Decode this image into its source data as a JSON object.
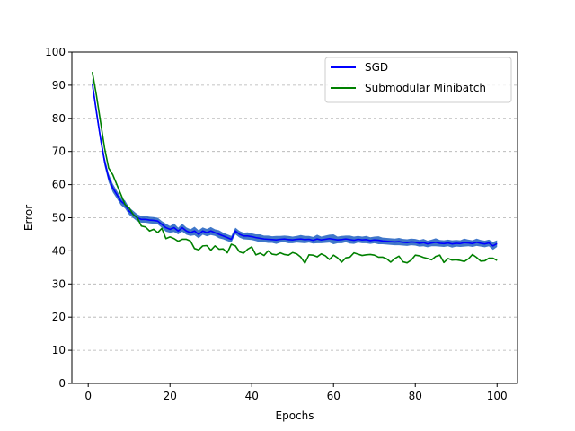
{
  "chart_data": {
    "type": "line",
    "title": "",
    "xlabel": "Epochs",
    "ylabel": "Error",
    "xlim": [
      -4,
      105
    ],
    "ylim": [
      0,
      100
    ],
    "xticks": [
      0,
      20,
      40,
      60,
      80,
      100
    ],
    "yticks": [
      0,
      10,
      20,
      30,
      40,
      50,
      60,
      70,
      80,
      90,
      100
    ],
    "grid": "horizontal-dashed",
    "legend_position": "top-right",
    "x": [
      1,
      2,
      3,
      4,
      5,
      6,
      7,
      8,
      9,
      10,
      11,
      12,
      13,
      14,
      15,
      16,
      17,
      18,
      19,
      20,
      21,
      22,
      23,
      24,
      25,
      26,
      27,
      28,
      29,
      30,
      31,
      32,
      33,
      34,
      35,
      36,
      37,
      38,
      39,
      40,
      41,
      42,
      43,
      44,
      45,
      46,
      47,
      48,
      49,
      50,
      51,
      52,
      53,
      54,
      55,
      56,
      57,
      58,
      59,
      60,
      61,
      62,
      63,
      64,
      65,
      66,
      67,
      68,
      69,
      70,
      71,
      72,
      73,
      74,
      75,
      76,
      77,
      78,
      79,
      80,
      81,
      82,
      83,
      84,
      85,
      86,
      87,
      88,
      89,
      90,
      91,
      92,
      93,
      94,
      95,
      96,
      97,
      98,
      99,
      100
    ],
    "series": [
      {
        "name": "SGD",
        "color": "#0000ff",
        "band_color": "#1f5fbf",
        "values": [
          90.5,
          82,
          74,
          67,
          62,
          59,
          57,
          55,
          54,
          52,
          51,
          50,
          49.5,
          49.5,
          49.3,
          49.2,
          49,
          48,
          47,
          46.5,
          47,
          46,
          47,
          46,
          45.5,
          46,
          45,
          46,
          45.5,
          46,
          45.5,
          45,
          44.5,
          44,
          43.5,
          46,
          45,
          44.5,
          44.5,
          44.3,
          44,
          43.8,
          43.6,
          43.5,
          43.4,
          43.3,
          43.5,
          43.6,
          43.4,
          43.3,
          43.5,
          43.6,
          43.4,
          43.5,
          43.2,
          43.6,
          43.3,
          43.5,
          43.7,
          43.5,
          43.3,
          43.4,
          43.6,
          43.4,
          43.2,
          43.5,
          43.3,
          43.4,
          43.1,
          43.3,
          43.2,
          43,
          42.9,
          42.8,
          42.7,
          42.8,
          42.6,
          42.5,
          42.7,
          42.6,
          42.3,
          42.5,
          42.1,
          42.4,
          42.6,
          42.3,
          42.2,
          42.4,
          42.1,
          42.3,
          42.2,
          42.5,
          42.4,
          42.2,
          42.6,
          42.3,
          42.1,
          42.4,
          41.5,
          42.2
        ],
        "spread": [
          1.5,
          1.5,
          1.4,
          1.4,
          1.3,
          1.3,
          1.2,
          1.2,
          1.2,
          1.1,
          1.1,
          1.1,
          1,
          1,
          1,
          1,
          1,
          1,
          1.2,
          1,
          1.3,
          1,
          1.2,
          1.1,
          1,
          1.3,
          1.2,
          1.1,
          1.1,
          1.2,
          1,
          1.2,
          1,
          1,
          1,
          1,
          1,
          1,
          1.1,
          1,
          1,
          1.2,
          1,
          1.1,
          1,
          1.2,
          1,
          1,
          1.1,
          1,
          1,
          1.2,
          1.1,
          1,
          1,
          1.3,
          1,
          1.1,
          1.2,
          1.5,
          1,
          1.1,
          1,
          1.2,
          1.1,
          1,
          1,
          1.1,
          1,
          1,
          1.2,
          1,
          1,
          1,
          1,
          1.1,
          1,
          1,
          1,
          1,
          1,
          1.1,
          1,
          1,
          1.2,
          1,
          1,
          1,
          1.1,
          1,
          1,
          1.2,
          1,
          1,
          1.1,
          1,
          1,
          1,
          1.2,
          1
        ]
      },
      {
        "name": "Submodular Minibatch",
        "color": "#008000",
        "values": [
          94,
          87,
          79,
          71,
          65,
          63,
          60,
          57,
          54,
          53,
          51,
          50,
          47.5,
          47.2,
          46,
          46.5,
          45.5,
          46.8,
          43.7,
          44.2,
          43.7,
          42.9,
          43.5,
          43.5,
          43,
          40.7,
          40.3,
          41.5,
          41.6,
          40.2,
          41.5,
          40.5,
          40.6,
          39.4,
          42,
          41.5,
          39.7,
          39.3,
          40.5,
          41.2,
          38.8,
          39.3,
          38.6,
          40,
          39,
          38.8,
          39.4,
          38.9,
          38.7,
          39.5,
          39.1,
          38.1,
          36.3,
          38.8,
          38.7,
          38.2,
          39.1,
          38.5,
          37.4,
          38.7,
          37.9,
          36.6,
          37.9,
          38.1,
          39.4,
          39,
          38.6,
          38.8,
          38.9,
          38.7,
          38.1,
          38.1,
          37.6,
          36.6,
          37.7,
          38.4,
          36.7,
          36.4,
          37.2,
          38.7,
          38.5,
          38,
          37.7,
          37.3,
          38.3,
          38.7,
          36.5,
          37.7,
          37.2,
          37.3,
          37.1,
          36.8,
          37.6,
          38.9,
          38,
          36.9,
          37,
          37.8,
          37.8,
          37.1
        ]
      }
    ]
  }
}
